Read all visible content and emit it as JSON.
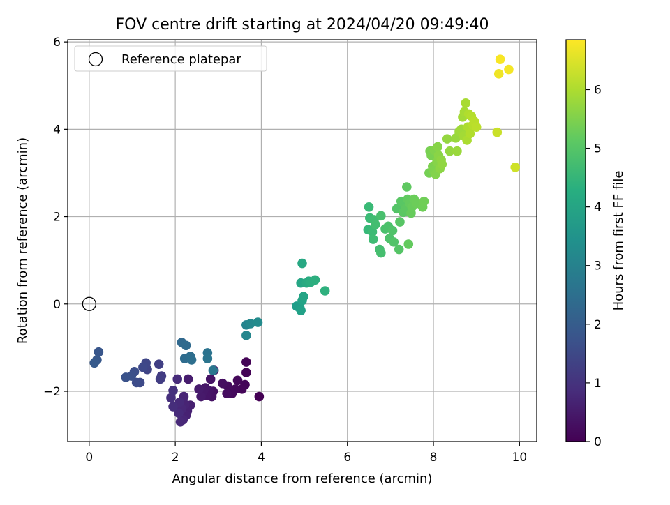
{
  "chart_data": {
    "type": "scatter",
    "title": "FOV centre drift starting at 2024/04/20 09:49:40",
    "xlabel": "Angular distance from reference (arcmin)",
    "ylabel": "Rotation from reference (arcmin)",
    "xlim": [
      -0.5,
      10.4
    ],
    "ylim": [
      -3.15,
      6.05
    ],
    "xticks": [
      0,
      2,
      4,
      6,
      8,
      10
    ],
    "yticks": [
      -2,
      0,
      2,
      4,
      6
    ],
    "grid": true,
    "legend": {
      "placement": "top-left",
      "label": "Reference platepar"
    },
    "reference_point": {
      "x": 0,
      "y": 0
    },
    "colorbar": {
      "label": "Hours from first FF file",
      "min": 0,
      "max": 6.85,
      "ticks": [
        0,
        1,
        2,
        3,
        4,
        5,
        6
      ],
      "colormap": "viridis"
    },
    "points": [
      {
        "x": 3.95,
        "y": -2.12,
        "c": 0.0
      },
      {
        "x": 3.65,
        "y": -1.57,
        "c": 0.03
      },
      {
        "x": 3.65,
        "y": -1.33,
        "c": 0.05
      },
      {
        "x": 3.62,
        "y": -1.85,
        "c": 0.08
      },
      {
        "x": 3.55,
        "y": -1.95,
        "c": 0.1
      },
      {
        "x": 3.45,
        "y": -1.75,
        "c": 0.13
      },
      {
        "x": 3.4,
        "y": -1.95,
        "c": 0.15
      },
      {
        "x": 3.32,
        "y": -2.05,
        "c": 0.18
      },
      {
        "x": 3.22,
        "y": -1.88,
        "c": 0.2
      },
      {
        "x": 3.2,
        "y": -2.05,
        "c": 0.23
      },
      {
        "x": 3.1,
        "y": -1.82,
        "c": 0.25
      },
      {
        "x": 2.9,
        "y": -1.52,
        "c": 0.28
      },
      {
        "x": 2.88,
        "y": -2.0,
        "c": 0.3
      },
      {
        "x": 2.85,
        "y": -2.12,
        "c": 0.33
      },
      {
        "x": 2.82,
        "y": -1.72,
        "c": 0.35
      },
      {
        "x": 2.78,
        "y": -1.98,
        "c": 0.38
      },
      {
        "x": 2.72,
        "y": -2.1,
        "c": 0.4
      },
      {
        "x": 2.7,
        "y": -1.92,
        "c": 0.43
      },
      {
        "x": 2.65,
        "y": -2.0,
        "c": 0.45
      },
      {
        "x": 2.6,
        "y": -2.12,
        "c": 0.48
      },
      {
        "x": 2.55,
        "y": -1.95,
        "c": 0.5
      },
      {
        "x": 2.3,
        "y": -1.72,
        "c": 0.55
      },
      {
        "x": 2.35,
        "y": -2.32,
        "c": 0.6
      },
      {
        "x": 2.28,
        "y": -2.45,
        "c": 0.63
      },
      {
        "x": 2.25,
        "y": -2.55,
        "c": 0.65
      },
      {
        "x": 2.22,
        "y": -2.3,
        "c": 0.68
      },
      {
        "x": 2.2,
        "y": -2.12,
        "c": 0.7
      },
      {
        "x": 2.18,
        "y": -2.65,
        "c": 0.73
      },
      {
        "x": 2.15,
        "y": -2.4,
        "c": 0.75
      },
      {
        "x": 2.12,
        "y": -2.7,
        "c": 0.78
      },
      {
        "x": 2.1,
        "y": -2.25,
        "c": 0.8
      },
      {
        "x": 2.08,
        "y": -2.5,
        "c": 0.83
      },
      {
        "x": 2.05,
        "y": -1.72,
        "c": 0.85
      },
      {
        "x": 1.95,
        "y": -2.35,
        "c": 0.9
      },
      {
        "x": 1.9,
        "y": -2.15,
        "c": 0.93
      },
      {
        "x": 1.95,
        "y": -1.98,
        "c": 0.96
      },
      {
        "x": 1.68,
        "y": -1.65,
        "c": 1.2
      },
      {
        "x": 1.65,
        "y": -1.72,
        "c": 1.25
      },
      {
        "x": 1.62,
        "y": -1.38,
        "c": 1.3
      },
      {
        "x": 1.35,
        "y": -1.5,
        "c": 1.4
      },
      {
        "x": 1.32,
        "y": -1.35,
        "c": 1.45
      },
      {
        "x": 1.25,
        "y": -1.45,
        "c": 1.5
      },
      {
        "x": 1.18,
        "y": -1.8,
        "c": 1.55
      },
      {
        "x": 1.1,
        "y": -1.8,
        "c": 1.6
      },
      {
        "x": 1.05,
        "y": -1.55,
        "c": 1.65
      },
      {
        "x": 0.98,
        "y": -1.65,
        "c": 1.7
      },
      {
        "x": 0.85,
        "y": -1.68,
        "c": 1.75
      },
      {
        "x": 0.22,
        "y": -1.1,
        "c": 1.85
      },
      {
        "x": 0.18,
        "y": -1.28,
        "c": 1.9
      },
      {
        "x": 0.12,
        "y": -1.35,
        "c": 1.95
      },
      {
        "x": 2.15,
        "y": -0.88,
        "c": 2.3
      },
      {
        "x": 2.25,
        "y": -0.95,
        "c": 2.35
      },
      {
        "x": 2.22,
        "y": -1.25,
        "c": 2.4
      },
      {
        "x": 2.35,
        "y": -1.2,
        "c": 2.45
      },
      {
        "x": 2.38,
        "y": -1.28,
        "c": 2.5
      },
      {
        "x": 2.75,
        "y": -1.12,
        "c": 2.6
      },
      {
        "x": 2.75,
        "y": -1.25,
        "c": 2.65
      },
      {
        "x": 2.88,
        "y": -1.52,
        "c": 2.7
      },
      {
        "x": 3.65,
        "y": -0.48,
        "c": 3.1
      },
      {
        "x": 3.65,
        "y": -0.72,
        "c": 3.15
      },
      {
        "x": 3.75,
        "y": -0.45,
        "c": 3.2
      },
      {
        "x": 3.92,
        "y": -0.42,
        "c": 3.3
      },
      {
        "x": 4.82,
        "y": -0.05,
        "c": 3.8
      },
      {
        "x": 4.9,
        "y": -0.1,
        "c": 3.85
      },
      {
        "x": 4.92,
        "y": -0.15,
        "c": 3.9
      },
      {
        "x": 4.95,
        "y": 0.08,
        "c": 3.95
      },
      {
        "x": 4.98,
        "y": 0.17,
        "c": 4.0
      },
      {
        "x": 4.92,
        "y": 0.48,
        "c": 4.05
      },
      {
        "x": 4.95,
        "y": 0.93,
        "c": 4.1
      },
      {
        "x": 5.05,
        "y": 0.48,
        "c": 4.15
      },
      {
        "x": 5.1,
        "y": 0.52,
        "c": 4.2
      },
      {
        "x": 5.15,
        "y": 0.5,
        "c": 4.25
      },
      {
        "x": 5.25,
        "y": 0.55,
        "c": 4.3
      },
      {
        "x": 5.48,
        "y": 0.3,
        "c": 4.35
      },
      {
        "x": 6.48,
        "y": 1.7,
        "c": 4.6
      },
      {
        "x": 6.5,
        "y": 2.22,
        "c": 4.63
      },
      {
        "x": 6.52,
        "y": 1.97,
        "c": 4.65
      },
      {
        "x": 6.58,
        "y": 1.65,
        "c": 4.68
      },
      {
        "x": 6.6,
        "y": 1.48,
        "c": 4.7
      },
      {
        "x": 6.62,
        "y": 1.93,
        "c": 4.73
      },
      {
        "x": 6.65,
        "y": 1.82,
        "c": 4.75
      },
      {
        "x": 6.75,
        "y": 1.25,
        "c": 4.78
      },
      {
        "x": 6.78,
        "y": 1.17,
        "c": 4.8
      },
      {
        "x": 6.78,
        "y": 2.02,
        "c": 4.83
      },
      {
        "x": 6.88,
        "y": 1.72,
        "c": 4.85
      },
      {
        "x": 6.95,
        "y": 1.78,
        "c": 4.88
      },
      {
        "x": 6.98,
        "y": 1.5,
        "c": 4.9
      },
      {
        "x": 7.05,
        "y": 1.68,
        "c": 4.93
      },
      {
        "x": 7.08,
        "y": 1.42,
        "c": 4.95
      },
      {
        "x": 7.15,
        "y": 2.18,
        "c": 4.98
      },
      {
        "x": 7.2,
        "y": 1.25,
        "c": 5.0
      },
      {
        "x": 7.22,
        "y": 1.88,
        "c": 5.03
      },
      {
        "x": 7.25,
        "y": 2.35,
        "c": 5.05
      },
      {
        "x": 7.3,
        "y": 2.1,
        "c": 5.08
      },
      {
        "x": 7.35,
        "y": 2.18,
        "c": 5.1
      },
      {
        "x": 7.38,
        "y": 2.68,
        "c": 5.13
      },
      {
        "x": 7.4,
        "y": 2.4,
        "c": 5.15
      },
      {
        "x": 7.42,
        "y": 1.37,
        "c": 5.18
      },
      {
        "x": 7.45,
        "y": 2.3,
        "c": 5.2
      },
      {
        "x": 7.48,
        "y": 2.08,
        "c": 5.23
      },
      {
        "x": 7.5,
        "y": 2.22,
        "c": 5.25
      },
      {
        "x": 7.55,
        "y": 2.4,
        "c": 5.28
      },
      {
        "x": 7.6,
        "y": 2.3,
        "c": 5.3
      },
      {
        "x": 7.75,
        "y": 2.22,
        "c": 5.33
      },
      {
        "x": 7.78,
        "y": 2.35,
        "c": 5.35
      },
      {
        "x": 7.9,
        "y": 3.0,
        "c": 5.4
      },
      {
        "x": 7.92,
        "y": 3.5,
        "c": 5.43
      },
      {
        "x": 7.95,
        "y": 3.4,
        "c": 5.45
      },
      {
        "x": 7.98,
        "y": 3.15,
        "c": 5.48
      },
      {
        "x": 8.0,
        "y": 3.05,
        "c": 5.5
      },
      {
        "x": 8.02,
        "y": 3.52,
        "c": 5.53
      },
      {
        "x": 8.05,
        "y": 2.97,
        "c": 5.55
      },
      {
        "x": 8.08,
        "y": 3.25,
        "c": 5.58
      },
      {
        "x": 8.1,
        "y": 3.6,
        "c": 5.6
      },
      {
        "x": 8.12,
        "y": 3.4,
        "c": 5.63
      },
      {
        "x": 8.15,
        "y": 3.1,
        "c": 5.65
      },
      {
        "x": 8.18,
        "y": 3.3,
        "c": 5.68
      },
      {
        "x": 8.2,
        "y": 3.2,
        "c": 5.7
      },
      {
        "x": 8.32,
        "y": 3.78,
        "c": 5.73
      },
      {
        "x": 8.38,
        "y": 3.5,
        "c": 5.75
      },
      {
        "x": 8.52,
        "y": 3.8,
        "c": 5.78
      },
      {
        "x": 8.55,
        "y": 3.5,
        "c": 5.8
      },
      {
        "x": 8.6,
        "y": 3.95,
        "c": 5.83
      },
      {
        "x": 8.65,
        "y": 4.0,
        "c": 5.85
      },
      {
        "x": 8.68,
        "y": 4.28,
        "c": 5.88
      },
      {
        "x": 8.7,
        "y": 3.85,
        "c": 5.9
      },
      {
        "x": 8.72,
        "y": 4.4,
        "c": 5.93
      },
      {
        "x": 8.75,
        "y": 4.6,
        "c": 5.95
      },
      {
        "x": 8.78,
        "y": 3.75,
        "c": 5.98
      },
      {
        "x": 8.8,
        "y": 4.05,
        "c": 6.0
      },
      {
        "x": 8.82,
        "y": 4.35,
        "c": 6.03
      },
      {
        "x": 8.85,
        "y": 3.9,
        "c": 6.05
      },
      {
        "x": 8.88,
        "y": 4.3,
        "c": 6.08
      },
      {
        "x": 8.92,
        "y": 4.1,
        "c": 6.1
      },
      {
        "x": 8.95,
        "y": 4.18,
        "c": 6.13
      },
      {
        "x": 9.0,
        "y": 4.05,
        "c": 6.15
      },
      {
        "x": 9.48,
        "y": 3.93,
        "c": 6.3
      },
      {
        "x": 9.9,
        "y": 3.13,
        "c": 6.35
      },
      {
        "x": 9.52,
        "y": 5.27,
        "c": 6.7
      },
      {
        "x": 9.75,
        "y": 5.37,
        "c": 6.75
      },
      {
        "x": 9.55,
        "y": 5.6,
        "c": 6.8
      }
    ]
  }
}
